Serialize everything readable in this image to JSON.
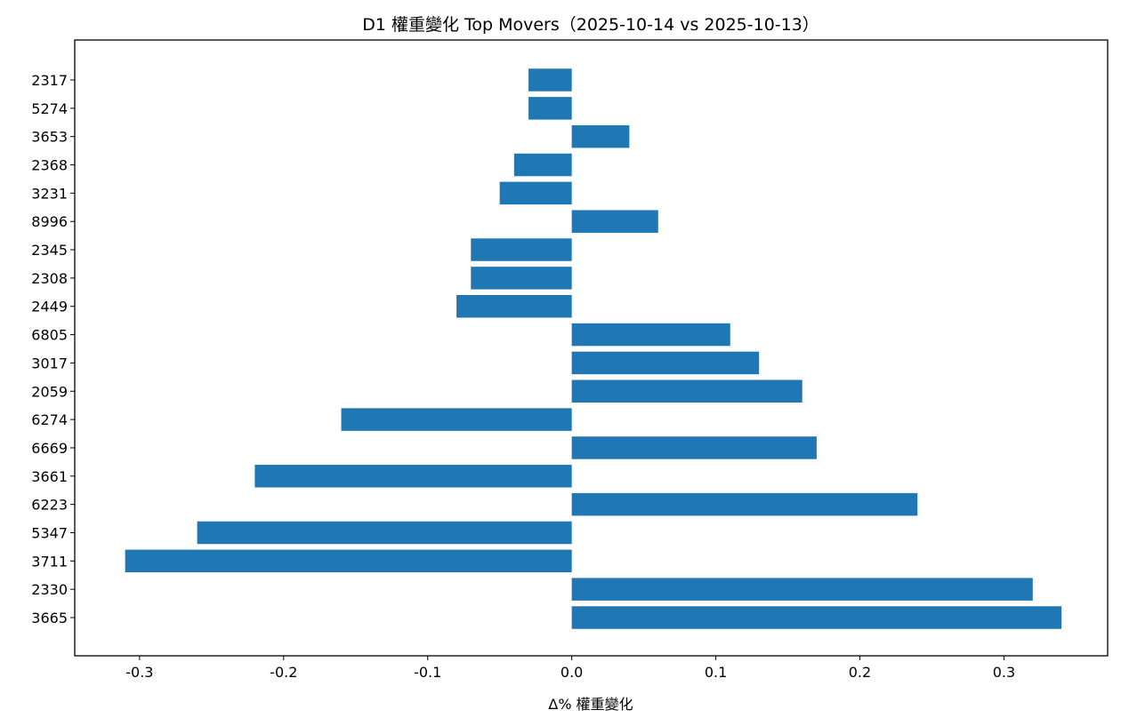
{
  "chart_data": {
    "type": "bar",
    "orientation": "horizontal",
    "title": "D1 權重變化 Top Movers（2025-10-14 vs 2025-10-13）",
    "xlabel": "Δ% 權重變化",
    "ylabel": "",
    "xlim": [
      -0.345,
      0.372
    ],
    "x_ticks": [
      {
        "value": -0.3,
        "label": "-0.3"
      },
      {
        "value": -0.2,
        "label": "-0.2"
      },
      {
        "value": -0.1,
        "label": "-0.1"
      },
      {
        "value": 0.0,
        "label": "0.0"
      },
      {
        "value": 0.1,
        "label": "0.1"
      },
      {
        "value": 0.2,
        "label": "0.2"
      },
      {
        "value": 0.3,
        "label": "0.3"
      }
    ],
    "grid": false,
    "bar_color": "#1f77b4",
    "categories": [
      "3665",
      "2330",
      "3711",
      "5347",
      "6223",
      "3661",
      "6669",
      "6274",
      "2059",
      "3017",
      "6805",
      "2449",
      "2308",
      "2345",
      "8996",
      "3231",
      "2368",
      "3653",
      "5274",
      "2317"
    ],
    "values": [
      0.34,
      0.32,
      -0.31,
      -0.26,
      0.24,
      -0.22,
      0.17,
      -0.16,
      0.16,
      0.13,
      0.11,
      -0.08,
      -0.07,
      -0.07,
      0.06,
      -0.05,
      -0.04,
      0.04,
      -0.03,
      -0.03
    ]
  }
}
